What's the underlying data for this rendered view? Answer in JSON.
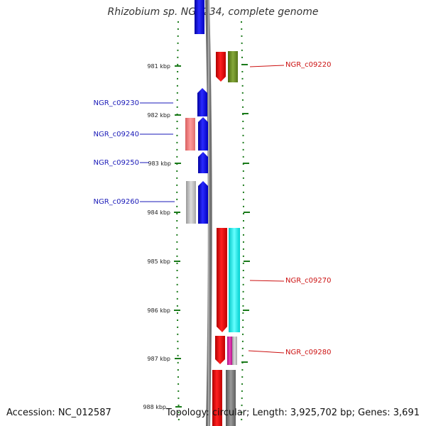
{
  "title": "Rhizobium sp. NGR234, complete genome",
  "footer": {
    "accession": "Accession: NC_012587",
    "summary": "Topology: circular; Length: 3,925,702 bp; Genes: 3,691"
  },
  "axis": {
    "unit": "kbp",
    "ticks": [
      {
        "label": "981 kbp",
        "value": 981
      },
      {
        "label": "982 kbp",
        "value": 982
      },
      {
        "label": "983 kbp",
        "value": 983
      },
      {
        "label": "984 kbp",
        "value": 984
      },
      {
        "label": "985 kbp",
        "value": 985
      },
      {
        "label": "986 kbp",
        "value": 986
      },
      {
        "label": "987 kbp",
        "value": 987
      },
      {
        "label": "988 kbp",
        "value": 988
      }
    ]
  },
  "gene_labels_left": [
    {
      "name": "NGR_c09230",
      "color": "#1a1ab8"
    },
    {
      "name": "NGR_c09240",
      "color": "#1a1ab8"
    },
    {
      "name": "NGR_c09250",
      "color": "#1a1ab8"
    },
    {
      "name": "NGR_c09260",
      "color": "#1a1ab8"
    }
  ],
  "gene_labels_right": [
    {
      "name": "NGR_c09220",
      "color": "#cc1111"
    },
    {
      "name": "NGR_c09270",
      "color": "#cc1111"
    },
    {
      "name": "NGR_c09280",
      "color": "#cc1111"
    }
  ],
  "colors": {
    "forward_gene": "#1010ee",
    "reverse_gene": "#ee1111",
    "backbone": "#888888",
    "tick": "#1a7a1a"
  }
}
